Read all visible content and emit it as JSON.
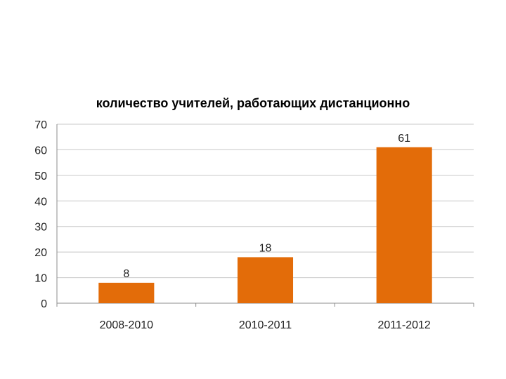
{
  "chart_data": {
    "type": "bar",
    "title": "количество учителей, работающих дистанционно",
    "categories": [
      "2008-2010",
      "2010-2011",
      "2011-2012"
    ],
    "values": [
      8,
      18,
      61
    ],
    "data_labels": [
      "8",
      "18",
      "61"
    ],
    "ylim": [
      0,
      70
    ],
    "yticks": [
      0,
      10,
      20,
      30,
      40,
      50,
      60,
      70
    ],
    "xlabel": "",
    "ylabel": "",
    "grid": true,
    "legend": "none",
    "bar_color": "#E36C09"
  }
}
